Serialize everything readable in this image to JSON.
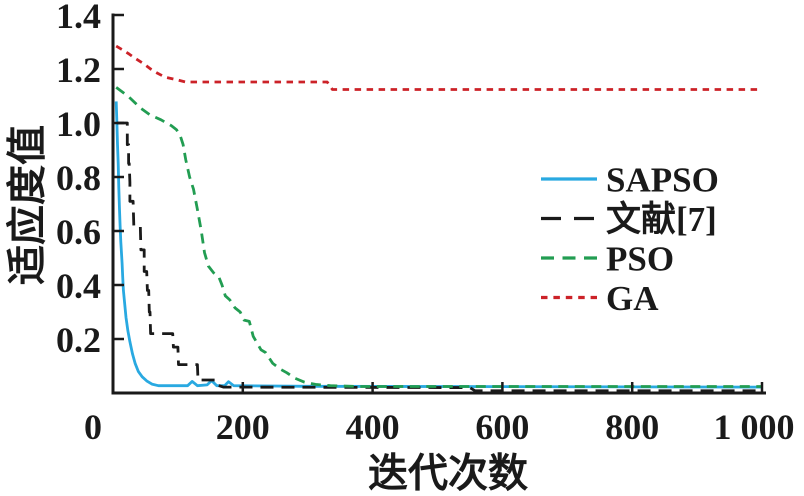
{
  "chart_data": {
    "type": "line",
    "title": "",
    "xlabel": "迭代次数",
    "ylabel": "适应度值",
    "xlim": [
      0,
      1000
    ],
    "ylim": [
      0,
      1.4
    ],
    "grid": false,
    "legend_position": "center-right",
    "x_ticks": [
      0,
      200,
      400,
      600,
      800,
      1000
    ],
    "x_tick_labels": [
      "0",
      "200",
      "400",
      "600",
      "800",
      "1 000"
    ],
    "y_ticks": [
      0.2,
      0.4,
      0.6,
      0.8,
      1.0,
      1.2,
      1.4
    ],
    "y_tick_labels": [
      "0.2",
      "0.4",
      "0.6",
      "0.8",
      "1.0",
      "1.2",
      "1.4"
    ],
    "series": [
      {
        "name": "SAPSO",
        "color": "#29a9e1",
        "dash": "solid",
        "points": [
          [
            5,
            1.08
          ],
          [
            6,
            1.0
          ],
          [
            7,
            0.92
          ],
          [
            8,
            0.85
          ],
          [
            9,
            0.76
          ],
          [
            10,
            0.68
          ],
          [
            11,
            0.62
          ],
          [
            12,
            0.56
          ],
          [
            14,
            0.48
          ],
          [
            15,
            0.43
          ],
          [
            16,
            0.38
          ],
          [
            18,
            0.33
          ],
          [
            20,
            0.28
          ],
          [
            23,
            0.23
          ],
          [
            26,
            0.19
          ],
          [
            30,
            0.145
          ],
          [
            34,
            0.11
          ],
          [
            39,
            0.08
          ],
          [
            45,
            0.06
          ],
          [
            52,
            0.045
          ],
          [
            60,
            0.033
          ],
          [
            70,
            0.027
          ],
          [
            115,
            0.027
          ],
          [
            122,
            0.043
          ],
          [
            130,
            0.027
          ],
          [
            145,
            0.03
          ],
          [
            152,
            0.046
          ],
          [
            160,
            0.027
          ],
          [
            172,
            0.027
          ],
          [
            178,
            0.042
          ],
          [
            186,
            0.027
          ],
          [
            300,
            0.025
          ],
          [
            1000,
            0.022
          ]
        ]
      },
      {
        "name": "文献[7]",
        "color": "#1a1a1a",
        "dash": "long-dash",
        "points": [
          [
            6,
            1.0
          ],
          [
            22,
            1.0
          ],
          [
            22,
            0.92
          ],
          [
            24,
            0.92
          ],
          [
            24,
            0.85
          ],
          [
            25,
            0.85
          ],
          [
            26,
            0.78
          ],
          [
            26,
            0.71
          ],
          [
            31,
            0.71
          ],
          [
            32,
            0.62
          ],
          [
            42,
            0.62
          ],
          [
            43,
            0.53
          ],
          [
            48,
            0.53
          ],
          [
            48,
            0.45
          ],
          [
            52,
            0.45
          ],
          [
            53,
            0.38
          ],
          [
            55,
            0.38
          ],
          [
            56,
            0.3
          ],
          [
            57,
            0.3
          ],
          [
            58,
            0.22
          ],
          [
            92,
            0.22
          ],
          [
            93,
            0.17
          ],
          [
            100,
            0.17
          ],
          [
            101,
            0.105
          ],
          [
            130,
            0.105
          ],
          [
            131,
            0.048
          ],
          [
            158,
            0.048
          ],
          [
            160,
            0.03
          ],
          [
            170,
            0.022
          ],
          [
            550,
            0.02
          ],
          [
            558,
            0.008
          ],
          [
            1000,
            0.008
          ]
        ]
      },
      {
        "name": "PSO",
        "color": "#229d52",
        "dash": "dash",
        "points": [
          [
            5,
            1.132
          ],
          [
            23,
            1.1
          ],
          [
            42,
            1.056
          ],
          [
            57,
            1.03
          ],
          [
            74,
            1.012
          ],
          [
            90,
            0.99
          ],
          [
            98,
            0.975
          ],
          [
            104,
            0.95
          ],
          [
            108,
            0.92
          ],
          [
            112,
            0.865
          ],
          [
            118,
            0.8
          ],
          [
            124,
            0.755
          ],
          [
            130,
            0.68
          ],
          [
            136,
            0.6
          ],
          [
            141,
            0.52
          ],
          [
            147,
            0.47
          ],
          [
            155,
            0.445
          ],
          [
            163,
            0.43
          ],
          [
            168,
            0.4
          ],
          [
            173,
            0.36
          ],
          [
            180,
            0.345
          ],
          [
            188,
            0.315
          ],
          [
            196,
            0.3
          ],
          [
            202,
            0.27
          ],
          [
            210,
            0.265
          ],
          [
            216,
            0.21
          ],
          [
            228,
            0.16
          ],
          [
            235,
            0.15
          ],
          [
            246,
            0.11
          ],
          [
            258,
            0.088
          ],
          [
            268,
            0.075
          ],
          [
            280,
            0.055
          ],
          [
            295,
            0.04
          ],
          [
            312,
            0.032
          ],
          [
            335,
            0.027
          ],
          [
            380,
            0.024
          ],
          [
            1000,
            0.024
          ]
        ]
      },
      {
        "name": "GA",
        "color": "#cc2228",
        "dash": "short-dash",
        "points": [
          [
            5,
            1.285
          ],
          [
            14,
            1.272
          ],
          [
            25,
            1.255
          ],
          [
            35,
            1.238
          ],
          [
            48,
            1.218
          ],
          [
            58,
            1.2
          ],
          [
            68,
            1.185
          ],
          [
            80,
            1.17
          ],
          [
            95,
            1.162
          ],
          [
            112,
            1.152
          ],
          [
            330,
            1.152
          ],
          [
            338,
            1.124
          ],
          [
            1000,
            1.124
          ]
        ]
      }
    ]
  }
}
